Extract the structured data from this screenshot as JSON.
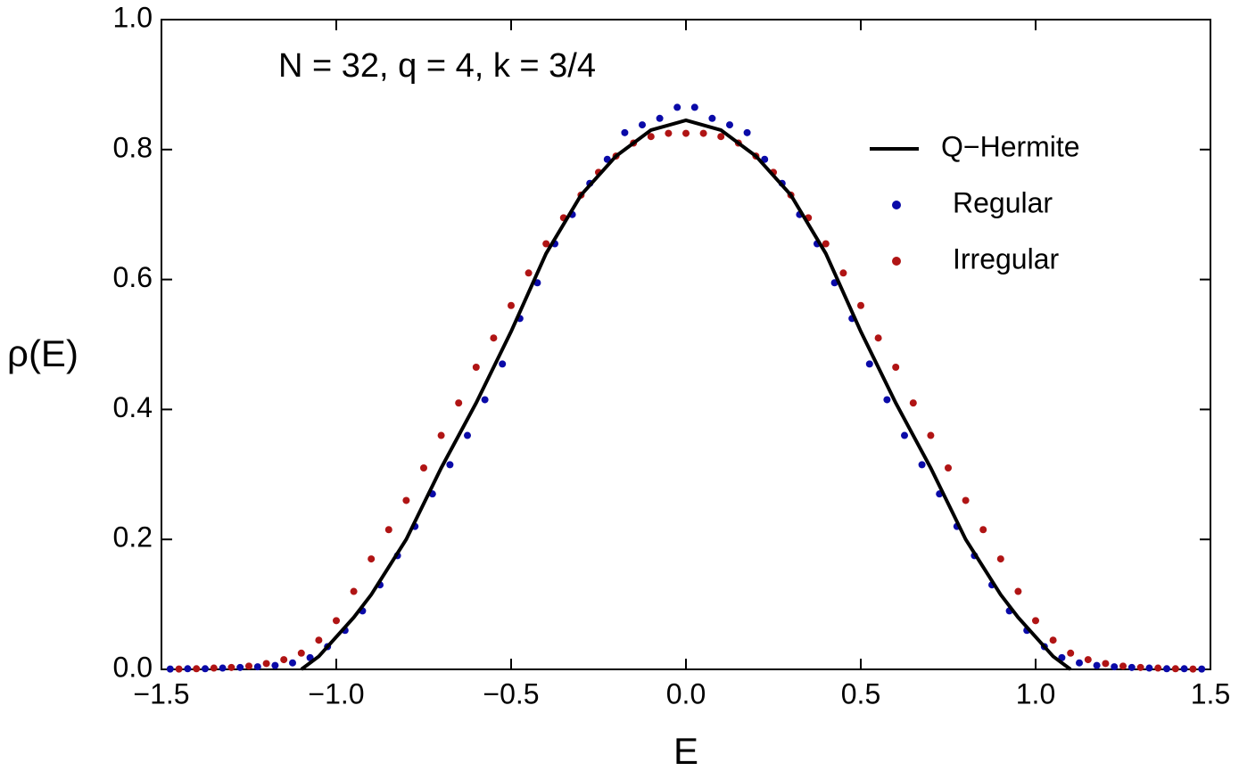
{
  "chart_data": {
    "type": "line-scatter",
    "annotation": "N = 32, q = 4, k = 3/4",
    "x_label": "E",
    "y_label": "ρ(E)",
    "xlim": [
      -1.5,
      1.5
    ],
    "ylim": [
      0,
      1
    ],
    "xticks": [
      {
        "value": -1.5,
        "label": "−1.5"
      },
      {
        "value": -1,
        "label": "−1.0"
      },
      {
        "value": -0.5,
        "label": "−0.5"
      },
      {
        "value": 0,
        "label": "0.0"
      },
      {
        "value": 0.5,
        "label": "0.5"
      },
      {
        "value": 1,
        "label": "1.0"
      },
      {
        "value": 1.5,
        "label": "1.5"
      }
    ],
    "yticks": [
      {
        "value": 0,
        "label": "0.0"
      },
      {
        "value": 0.2,
        "label": "0.2"
      },
      {
        "value": 0.4,
        "label": "0.4"
      },
      {
        "value": 0.6,
        "label": "0.6"
      },
      {
        "value": 0.8,
        "label": "0.8"
      },
      {
        "value": 1,
        "label": "1.0"
      }
    ],
    "legend": "upper right",
    "series": [
      {
        "name": "Q−Hermite",
        "kind": "line",
        "color": "#000000",
        "x": [
          -1.1,
          -1.05,
          -1.0,
          -0.95,
          -0.9,
          -0.8,
          -0.7,
          -0.6,
          -0.5,
          -0.4,
          -0.3,
          -0.2,
          -0.1,
          0,
          0.1,
          0.2,
          0.3,
          0.4,
          0.5,
          0.6,
          0.7,
          0.8,
          0.9,
          0.95,
          1.0,
          1.05,
          1.1
        ],
        "values": [
          0,
          0.02,
          0.05,
          0.08,
          0.115,
          0.2,
          0.31,
          0.41,
          0.52,
          0.64,
          0.73,
          0.79,
          0.83,
          0.845,
          0.83,
          0.79,
          0.73,
          0.64,
          0.52,
          0.41,
          0.31,
          0.2,
          0.115,
          0.08,
          0.05,
          0.02,
          0
        ]
      },
      {
        "name": "Regular",
        "kind": "scatter",
        "color": "#0a0aa8",
        "x": [
          -1.475,
          -1.425,
          -1.375,
          -1.325,
          -1.275,
          -1.225,
          -1.175,
          -1.125,
          -1.075,
          -1.025,
          -0.975,
          -0.925,
          -0.875,
          -0.825,
          -0.775,
          -0.725,
          -0.675,
          -0.625,
          -0.575,
          -0.525,
          -0.475,
          -0.425,
          -0.375,
          -0.325,
          -0.275,
          -0.225,
          -0.175,
          -0.125,
          -0.075,
          -0.025,
          0.025,
          0.075,
          0.125,
          0.175,
          0.225,
          0.275,
          0.325,
          0.375,
          0.425,
          0.475,
          0.525,
          0.575,
          0.625,
          0.675,
          0.725,
          0.775,
          0.825,
          0.875,
          0.925,
          0.975,
          1.025,
          1.075,
          1.125,
          1.175,
          1.225,
          1.275,
          1.325,
          1.375,
          1.425,
          1.475
        ],
        "values": [
          0.0005,
          0.001,
          0.001,
          0.002,
          0.003,
          0.004,
          0.006,
          0.01,
          0.018,
          0.035,
          0.06,
          0.09,
          0.13,
          0.175,
          0.22,
          0.27,
          0.315,
          0.36,
          0.415,
          0.47,
          0.54,
          0.595,
          0.655,
          0.7,
          0.748,
          0.785,
          0.826,
          0.838,
          0.848,
          0.865,
          0.865,
          0.848,
          0.838,
          0.826,
          0.785,
          0.748,
          0.7,
          0.655,
          0.595,
          0.54,
          0.47,
          0.415,
          0.36,
          0.315,
          0.27,
          0.22,
          0.175,
          0.13,
          0.09,
          0.06,
          0.035,
          0.018,
          0.01,
          0.006,
          0.004,
          0.003,
          0.002,
          0.001,
          0.001,
          0.0005
        ]
      },
      {
        "name": "Irregular",
        "kind": "scatter",
        "color": "#b01414",
        "x": [
          -1.45,
          -1.4,
          -1.35,
          -1.3,
          -1.25,
          -1.2,
          -1.15,
          -1.1,
          -1.05,
          -1.0,
          -0.95,
          -0.9,
          -0.85,
          -0.8,
          -0.75,
          -0.7,
          -0.65,
          -0.6,
          -0.55,
          -0.5,
          -0.45,
          -0.4,
          -0.35,
          -0.3,
          -0.25,
          -0.2,
          -0.15,
          -0.1,
          -0.05,
          0,
          0.05,
          0.1,
          0.15,
          0.2,
          0.25,
          0.3,
          0.35,
          0.4,
          0.45,
          0.5,
          0.55,
          0.6,
          0.65,
          0.7,
          0.75,
          0.8,
          0.85,
          0.9,
          0.95,
          1.0,
          1.05,
          1.1,
          1.15,
          1.2,
          1.25,
          1.3,
          1.35,
          1.4,
          1.45
        ],
        "values": [
          0.0005,
          0.001,
          0.002,
          0.003,
          0.005,
          0.009,
          0.015,
          0.025,
          0.045,
          0.075,
          0.12,
          0.17,
          0.215,
          0.26,
          0.31,
          0.36,
          0.41,
          0.465,
          0.51,
          0.56,
          0.61,
          0.655,
          0.695,
          0.73,
          0.765,
          0.79,
          0.81,
          0.82,
          0.825,
          0.825,
          0.825,
          0.82,
          0.81,
          0.79,
          0.765,
          0.73,
          0.695,
          0.655,
          0.61,
          0.56,
          0.51,
          0.465,
          0.41,
          0.36,
          0.31,
          0.26,
          0.215,
          0.17,
          0.12,
          0.075,
          0.045,
          0.025,
          0.015,
          0.009,
          0.005,
          0.003,
          0.002,
          0.001,
          0.0005
        ]
      }
    ]
  }
}
